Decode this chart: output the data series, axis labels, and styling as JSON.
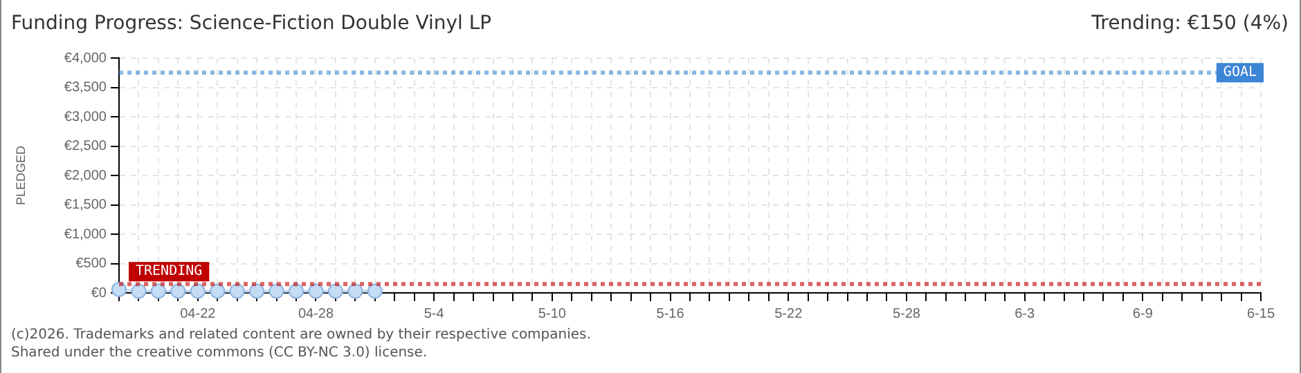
{
  "chart_data": {
    "type": "line",
    "title": "Funding Progress: Science-Fiction Double Vinyl LP",
    "subtitle": "Trending: €150 (4%)",
    "ylabel": "PLEDGED",
    "annotations": [
      "(c)2026. Trademarks and related content are owned by their respective companies.",
      "Shared under the creative commons (CC BY-NC 3.0) license."
    ],
    "categories": [
      null,
      null,
      null,
      null,
      "04-22",
      null,
      null,
      null,
      null,
      null,
      "04-28",
      null,
      null,
      null,
      null,
      null,
      "5-4",
      null,
      null,
      null,
      null,
      null,
      "5-10",
      null,
      null,
      null,
      null,
      null,
      "5-16",
      null,
      null,
      null,
      null,
      null,
      "5-22",
      null,
      null,
      null,
      null,
      null,
      "5-28",
      null,
      null,
      null,
      null,
      null,
      "6-3",
      null,
      null,
      null,
      null,
      null,
      "6-9",
      null,
      null,
      null,
      null,
      null,
      "6-15"
    ],
    "series": [
      {
        "color": "#c5dcf5",
        "values": [
          60,
          30,
          30,
          30,
          30,
          30,
          30,
          30,
          30,
          30,
          30,
          30,
          30,
          30,
          null,
          null,
          null,
          null,
          null,
          null,
          null,
          null,
          null,
          null,
          null,
          null,
          null,
          null,
          null,
          null,
          null,
          null,
          null,
          null,
          null,
          null,
          null,
          null,
          null,
          null,
          null,
          null,
          null,
          null,
          null,
          null,
          null,
          null,
          null,
          null,
          null,
          null,
          null,
          null,
          null,
          null,
          null,
          null,
          null
        ]
      }
    ],
    "ylim": [
      0,
      4000
    ],
    "yticks": [
      {
        "value": 0,
        "label": "€0"
      },
      {
        "value": 500,
        "label": "€500"
      },
      {
        "value": 1000,
        "label": "€1,000"
      },
      {
        "value": 1500,
        "label": "€1,500"
      },
      {
        "value": 2000,
        "label": "€2,000"
      },
      {
        "value": 2500,
        "label": "€2,500"
      },
      {
        "value": 3000,
        "label": "€3,000"
      },
      {
        "value": 3500,
        "label": "€3,500"
      },
      {
        "value": 4000,
        "label": "€4,000"
      }
    ],
    "ref_lines": [
      {
        "axis": "y",
        "value": 3750,
        "label": "GOAL",
        "color": "#3d85d6",
        "line_style": "dotted"
      },
      {
        "axis": "y",
        "value": 150,
        "label": "TRENDING",
        "color": "#c00000",
        "line_style": "dotted"
      }
    ],
    "grid": true,
    "legend": false,
    "marker": "circle",
    "line_style": "solid"
  }
}
